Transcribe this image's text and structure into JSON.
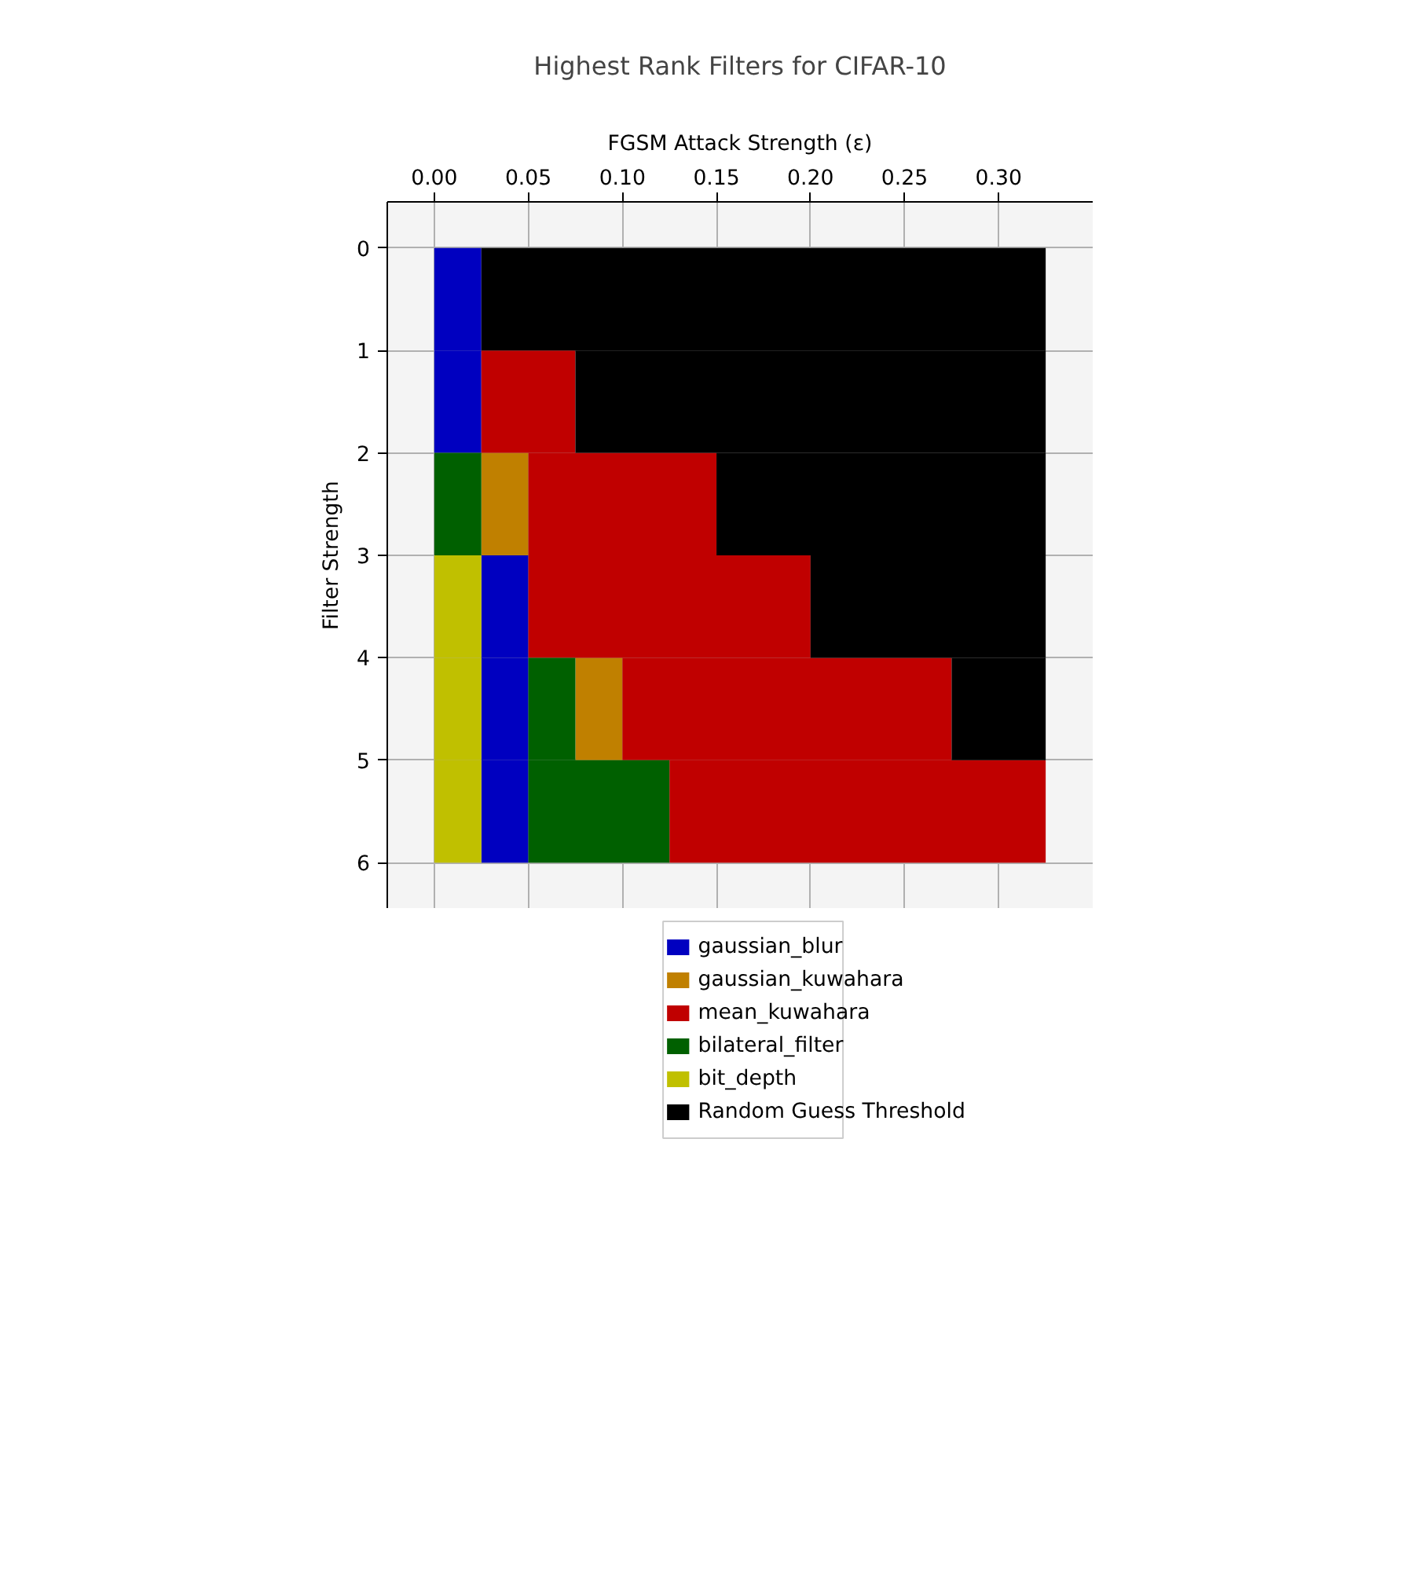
{
  "chart_data": {
    "type": "bar",
    "orientation": "horizontal",
    "title": "Highest Rank Filters for CIFAR-10",
    "xlabel": "FGSM Attack Strength (ε)",
    "ylabel": "Filter Strength",
    "x": [
      0.5,
      1.5,
      2.5,
      3.5,
      4.5,
      5.5
    ],
    "series": [
      {
        "name": "gaussian_blur",
        "color": "#0000c0",
        "base": [
          0,
          0,
          null,
          0.025,
          0.025,
          0.025
        ],
        "values": [
          0.025,
          0.025,
          null,
          0.025,
          0.025,
          0.025
        ]
      },
      {
        "name": "gaussian_kuwahara",
        "color": "#c08000",
        "base": [
          null,
          null,
          0.025,
          null,
          0.075,
          null
        ],
        "values": [
          null,
          null,
          0.025,
          null,
          0.025,
          null
        ]
      },
      {
        "name": "mean_kuwahara",
        "color": "#c00000",
        "base": [
          null,
          0.025,
          0.05,
          0.05,
          0.1,
          0.125
        ],
        "values": [
          null,
          0.05,
          0.1,
          0.15,
          0.175,
          0.2
        ]
      },
      {
        "name": "bilateral_filter",
        "color": "#006000",
        "base": [
          null,
          null,
          0,
          null,
          0.05,
          0.05
        ],
        "values": [
          null,
          null,
          0.025,
          null,
          0.025,
          0.075
        ]
      },
      {
        "name": "bit_depth",
        "color": "#c0c000",
        "base": [
          null,
          null,
          null,
          0,
          0,
          0
        ],
        "values": [
          null,
          null,
          null,
          0.025,
          0.025,
          0.025
        ]
      },
      {
        "name": "Random Guess Threshold",
        "color": "#000000",
        "base": [
          0.025,
          0.075,
          0.15,
          0.2,
          0.275,
          null
        ],
        "values": [
          0.3,
          0.25,
          0.175,
          0.125,
          0.05,
          null
        ]
      }
    ],
    "xlim": [
      -0.025,
      0.35
    ],
    "ylim": [
      6.45,
      -0.45
    ],
    "xticks": [
      {
        "value": 0,
        "label": "0.00"
      },
      {
        "value": 0.05,
        "label": "0.05"
      },
      {
        "value": 0.1,
        "label": "0.10"
      },
      {
        "value": 0.15,
        "label": "0.15"
      },
      {
        "value": 0.2,
        "label": "0.20"
      },
      {
        "value": 0.25,
        "label": "0.25"
      },
      {
        "value": 0.3,
        "label": "0.30"
      }
    ],
    "yticks": [
      0,
      1,
      2,
      3,
      4,
      5,
      6
    ],
    "grid": true,
    "legend": "bottom"
  }
}
